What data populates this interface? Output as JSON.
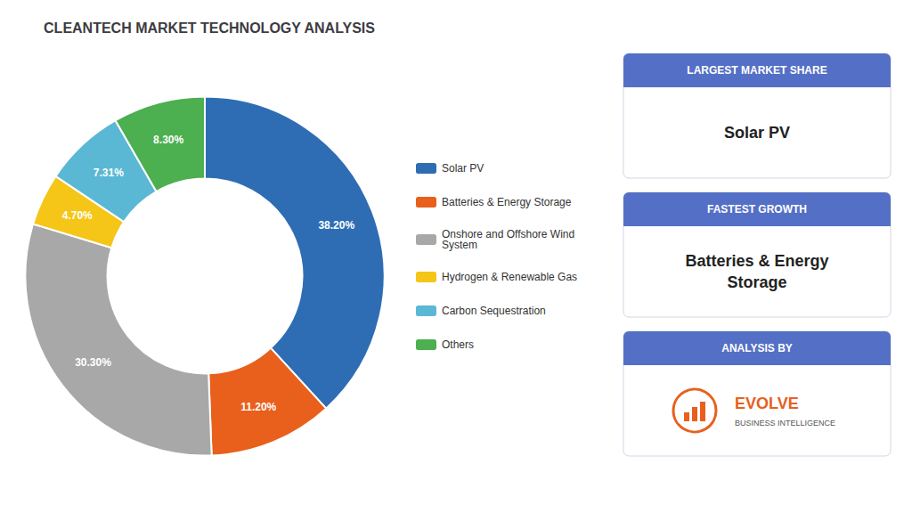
{
  "chart_data": {
    "type": "pie",
    "title": "CLEANTECH MARKET TECHNOLOGY ANALYSIS",
    "categories": [
      "Solar PV",
      "Batteries & Energy Storage",
      "Onshore and Offshore Wind\nSystem",
      "Hydrogen & Renewable Gas",
      "Carbon Sequestration",
      "Others"
    ],
    "values": [
      38.2,
      11.2,
      30.3,
      4.7,
      7.31,
      8.3
    ],
    "value_labels": [
      "38.20%",
      "11.20%",
      "30.30%",
      "4.70%",
      "7.31%",
      "8.30%"
    ],
    "colors": [
      "#2E6DB4",
      "#E8601C",
      "#A8A8A8",
      "#F5C518",
      "#5BB8D4",
      "#4CAF50"
    ],
    "data_labels": true,
    "legend": "right",
    "annotations": [
      {
        "title": "LARGEST MARKET SHARE",
        "text": "Solar PV"
      },
      {
        "title": "FASTEST GROWTH",
        "text": "Batteries & Energy\nStorage"
      },
      {
        "title": "ANALYSIS BY",
        "text": "EVOLVE",
        "subtext": "BUSINESS INTELLIGENCE"
      }
    ]
  }
}
